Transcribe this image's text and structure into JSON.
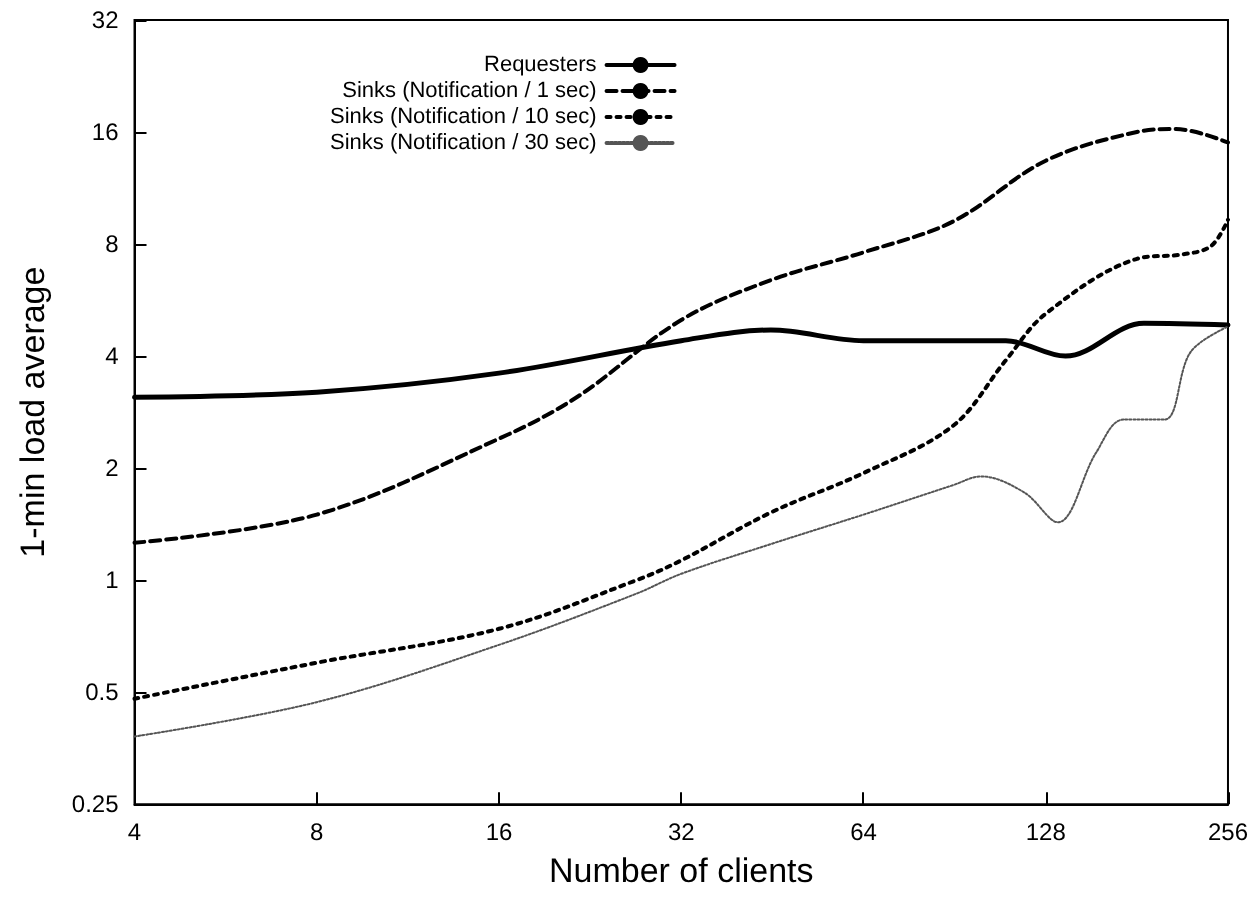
{
  "chart_data": {
    "type": "line",
    "xlabel": "Number of clients",
    "ylabel": "1-min load average",
    "log": "xy",
    "xlim": [
      4,
      256
    ],
    "xticks": [
      4,
      8,
      16,
      32,
      64,
      128,
      256
    ],
    "ylim": [
      0.25,
      32
    ],
    "yticks": [
      0.25,
      0.5,
      1,
      2,
      4,
      8,
      16,
      32
    ],
    "grid": false,
    "legend": "top",
    "marker": "none",
    "series": [
      {
        "name": "Requesters",
        "color": "#000000",
        "line_style": "solid",
        "x": [
          4,
          8,
          16,
          32,
          45,
          64,
          90,
          110,
          138,
          186,
          256
        ],
        "values": [
          3.1,
          3.2,
          3.6,
          4.4,
          4.7,
          4.4,
          4.4,
          4.4,
          4.0,
          4.9,
          4.85
        ]
      },
      {
        "name": "Sinks (Notification / 1 sec)",
        "color": "#000000",
        "line_style": "dashed",
        "x": [
          4,
          8,
          16,
          21.5,
          32,
          45,
          64,
          90,
          128,
          181,
          210,
          256
        ],
        "values": [
          1.26,
          1.5,
          2.4,
          3.1,
          5.0,
          6.4,
          7.6,
          9.2,
          13.4,
          16,
          16.3,
          15
        ]
      },
      {
        "name": "Sinks (Notification / 10 sec)",
        "color": "#000000",
        "line_style": "dotted",
        "x": [
          4,
          8,
          16,
          27,
          32,
          45,
          64,
          90,
          110,
          128,
          181,
          215,
          240,
          256
        ],
        "values": [
          0.48,
          0.6,
          0.74,
          1.0,
          1.13,
          1.52,
          1.94,
          2.6,
          3.9,
          5.2,
          7.3,
          7.5,
          7.9,
          9.3
        ]
      },
      {
        "name": "Sinks (Notification / 30 sec)",
        "color": "#555555",
        "line_style": "dotted",
        "x": [
          4,
          8,
          16,
          27,
          32,
          45,
          64,
          90,
          100,
          118,
          134,
          155,
          172,
          201,
          222,
          256
        ],
        "values": [
          0.38,
          0.47,
          0.67,
          0.92,
          1.04,
          1.25,
          1.5,
          1.8,
          1.9,
          1.72,
          1.43,
          2.2,
          2.7,
          2.7,
          4.1,
          4.8
        ]
      }
    ]
  }
}
